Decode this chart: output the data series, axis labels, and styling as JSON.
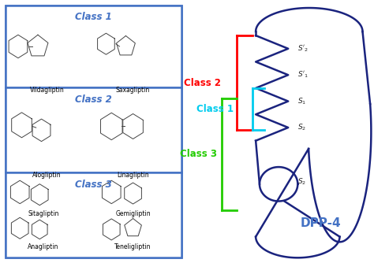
{
  "class1_label": "Class 1",
  "class2_label": "Class 2",
  "class3_label": "Class 3",
  "dpp4_label": "DPP-4",
  "class1_box_color": "#4472C4",
  "class2_color": "#FF0000",
  "class3_color": "#22CC00",
  "class1_bracket_color": "#00CCEE",
  "dpp4_color": "#4472C4",
  "pocket_color": "#1a237e",
  "drugs_class1": [
    "Vildagliptin",
    "Saxagliptin"
  ],
  "drugs_class2": [
    "Alogliptin",
    "Linagliptin"
  ],
  "drugs_class3": [
    "Sitagliptin",
    "Gemigliptin",
    "Anagliptin",
    "Teneligliptin"
  ],
  "subpocket_labels": [
    "S'_2",
    "S'_1",
    "S_1",
    "S_2",
    "S_2"
  ],
  "bg_color": "#FFFFFF",
  "box_color": "#4472C4"
}
